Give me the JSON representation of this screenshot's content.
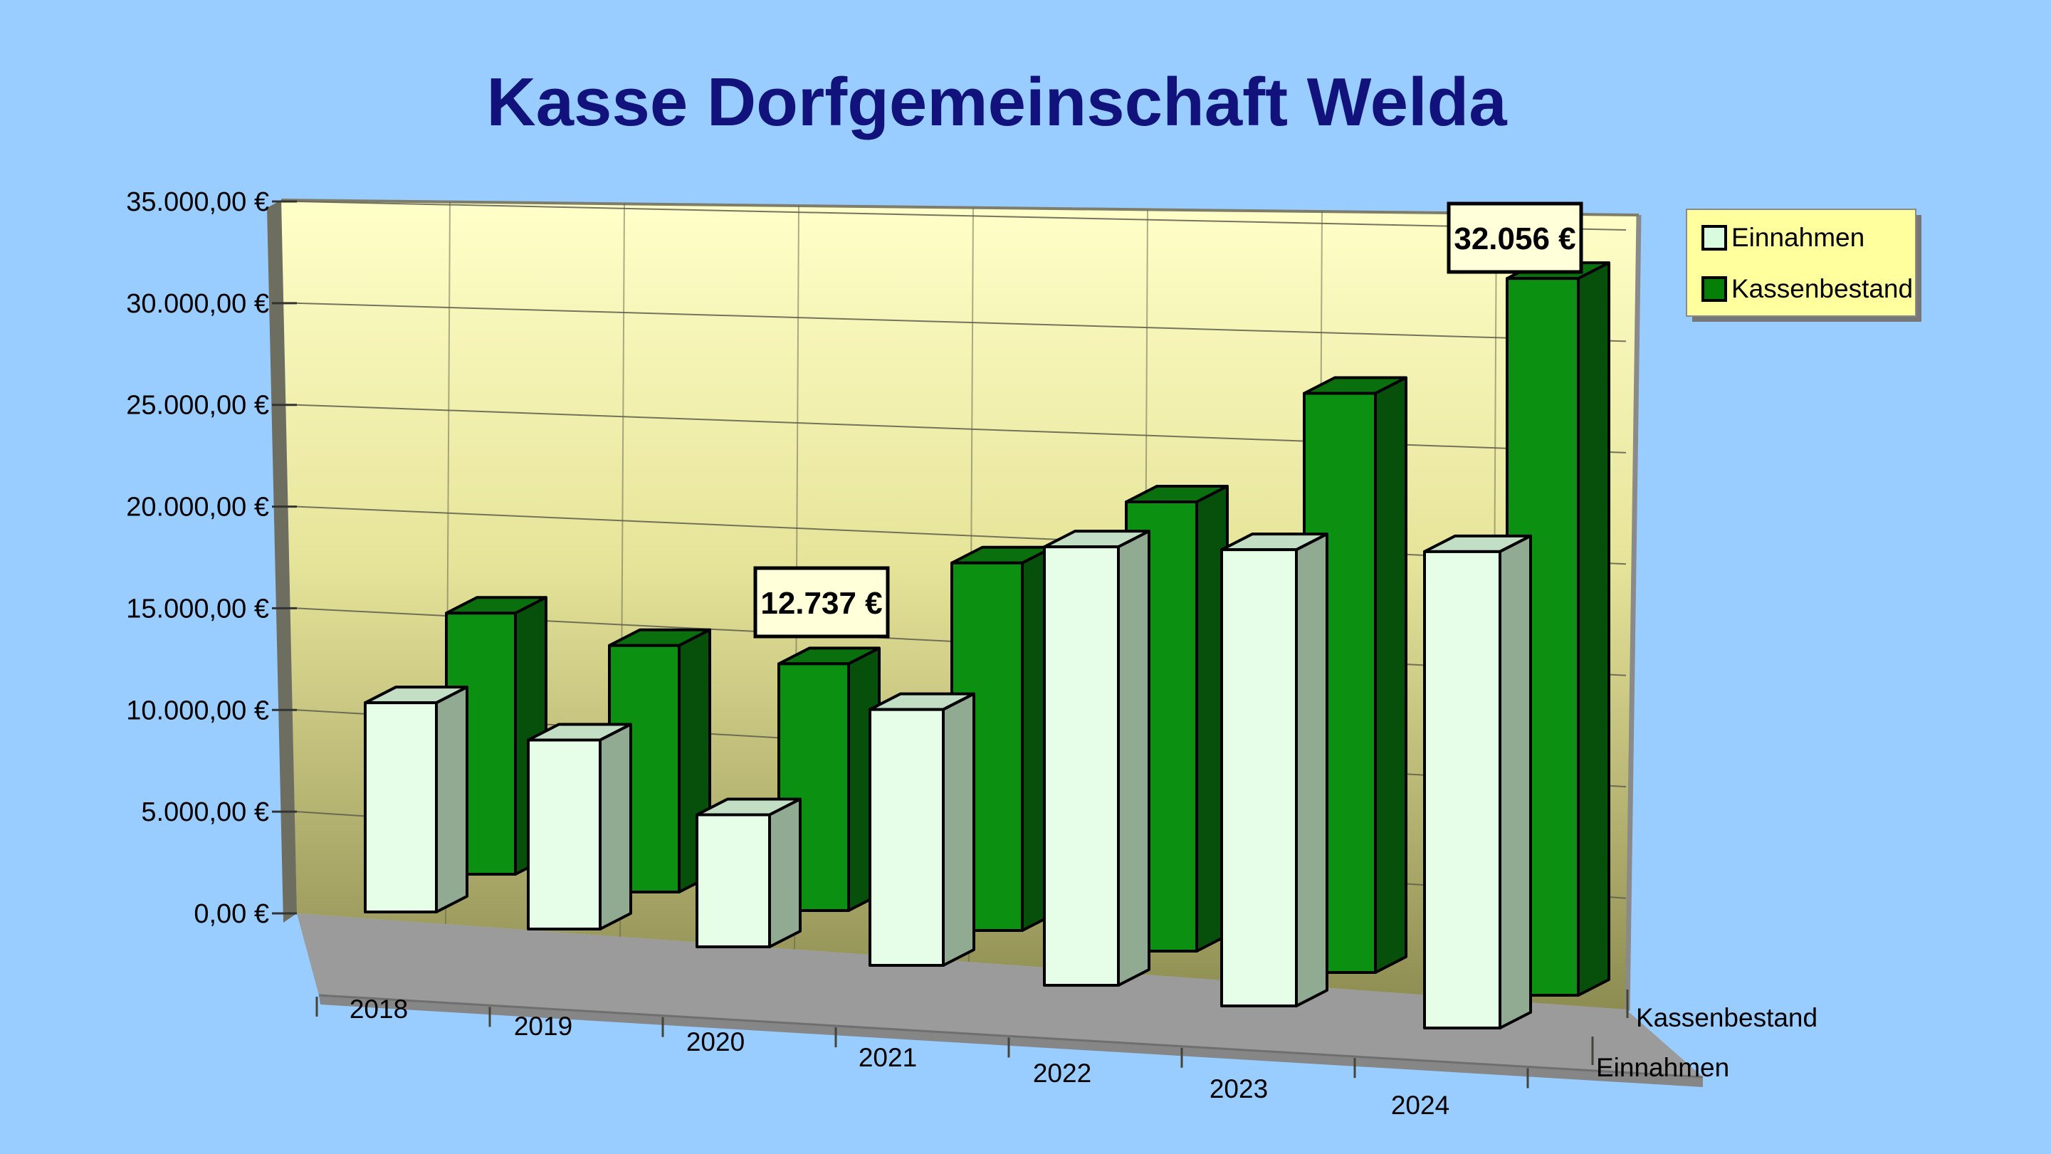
{
  "title": "Kasse Dorfgemeinschaft Welda",
  "colors": {
    "background": "#99CCFF",
    "title": "#12127C",
    "wall_top": "#FFFFC9",
    "wall_mid": "#E6E499",
    "wall_bottom": "#8D8C51",
    "side_wall": "#6E6E60",
    "floor": "#9B9B9B",
    "floor_front": "#868686",
    "gridline": "#5E5E4E",
    "einnahmen_front": "#E6FDE8",
    "einnahmen_top": "#C2DEC4",
    "einnahmen_side": "#90AB92",
    "kassenbestand_front": "#0C9012",
    "kassenbestand_top": "#0A700E",
    "kassenbestand_side": "#07500B",
    "legend_bg": "#FFFF9E",
    "legend_border": "#8A8A8A",
    "callout_bg": "#FFFFD9",
    "callout_border": "#000000"
  },
  "chart_data": {
    "type": "bar",
    "variant": "3d-column",
    "title": "Kasse Dorfgemeinschaft Welda",
    "categories": [
      "2018",
      "2019",
      "2020",
      "2021",
      "2022",
      "2023",
      "2024"
    ],
    "series": [
      {
        "name": "Einnahmen",
        "color": "#E6FDE8",
        "values": [
          11600,
          10100,
          6800,
          12700,
          21000,
          21100,
          21200
        ],
        "values_are_estimates": true
      },
      {
        "name": "Kassenbestand",
        "color": "#0C9012",
        "values": [
          14500,
          13200,
          12737,
          18300,
          21600,
          26900,
          32056
        ],
        "values_are_estimates": true
      }
    ],
    "value_axis": {
      "min": 0,
      "max": 35000,
      "step": 5000,
      "tick_labels": [
        "0,00 €",
        "5.000,00 €",
        "10.000,00 €",
        "15.000,00 €",
        "20.000,00 €",
        "25.000,00 €",
        "30.000,00 €",
        "35.000,00 €"
      ]
    },
    "depth_axis_labels": [
      "Kassenbestand",
      "Einnahmen"
    ],
    "data_labels": [
      {
        "series": "Kassenbestand",
        "category": "2020",
        "text": "12.737 €"
      },
      {
        "series": "Kassenbestand",
        "category": "2024",
        "text": "32.056 €"
      }
    ],
    "legend": {
      "position": "top-right",
      "entries": [
        {
          "label": "Einnahmen",
          "swatch_color": "#D9FBDF"
        },
        {
          "label": "Kassenbestand",
          "swatch_color": "#067F06"
        }
      ]
    },
    "grid": true
  }
}
